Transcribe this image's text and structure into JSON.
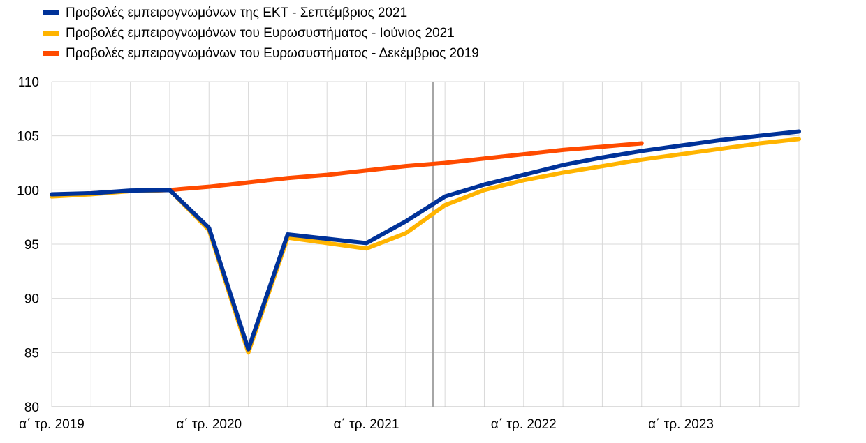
{
  "chart_data": {
    "type": "line",
    "title": "",
    "xlabel": "",
    "ylabel": "",
    "ylim": [
      80,
      110
    ],
    "yticks": [
      80,
      85,
      90,
      95,
      100,
      105,
      110
    ],
    "x": [
      "2019Q1",
      "2019Q2",
      "2019Q3",
      "2019Q4",
      "2020Q1",
      "2020Q2",
      "2020Q3",
      "2020Q4",
      "2021Q1",
      "2021Q2",
      "2021Q3",
      "2021Q4",
      "2022Q1",
      "2022Q2",
      "2022Q3",
      "2022Q4",
      "2023Q1",
      "2023Q2",
      "2023Q3",
      "2023Q4"
    ],
    "xtick_labels": [
      {
        "index": 0,
        "label": "α΄ τρ. 2019"
      },
      {
        "index": 4,
        "label": "α΄ τρ. 2020"
      },
      {
        "index": 8,
        "label": "α΄ τρ. 2021"
      },
      {
        "index": 12,
        "label": "α΄ τρ. 2022"
      },
      {
        "index": 16,
        "label": "α΄ τρ. 2023"
      }
    ],
    "vertical_marker_index": 9.7,
    "grid": true,
    "legend_position": "top-left",
    "series": [
      {
        "name": "Προβολές εμπειρογνωμόνων του Ευρωσυστήματος - Δεκέμβριος 2019",
        "color": "#ff4b00",
        "values": [
          99.5,
          99.7,
          99.9,
          100.0,
          100.3,
          100.7,
          101.1,
          101.4,
          101.8,
          102.2,
          102.5,
          102.9,
          103.3,
          103.7,
          104.0,
          104.3,
          null,
          null,
          null,
          null
        ]
      },
      {
        "name": "Προβολές εμπειρογνωμόνων του Ευρωσυστήματος - Ιούνιος 2021",
        "color": "#ffb400",
        "values": [
          99.4,
          99.6,
          99.9,
          100.0,
          96.3,
          85.0,
          95.6,
          95.1,
          94.6,
          96.0,
          98.6,
          100.0,
          100.9,
          101.6,
          102.2,
          102.8,
          103.3,
          103.8,
          104.3,
          104.7
        ]
      },
      {
        "name": "Προβολές εμπειρογνωμόνων της ΕΚΤ - Σεπτέμβριος 2021",
        "color": "#003299",
        "values": [
          99.6,
          99.7,
          99.95,
          100.0,
          96.5,
          85.3,
          95.9,
          95.5,
          95.1,
          97.1,
          99.4,
          100.5,
          101.4,
          102.3,
          103.0,
          103.6,
          104.1,
          104.6,
          105.0,
          105.4
        ]
      }
    ],
    "legend_order": [
      2,
      1,
      0
    ]
  }
}
